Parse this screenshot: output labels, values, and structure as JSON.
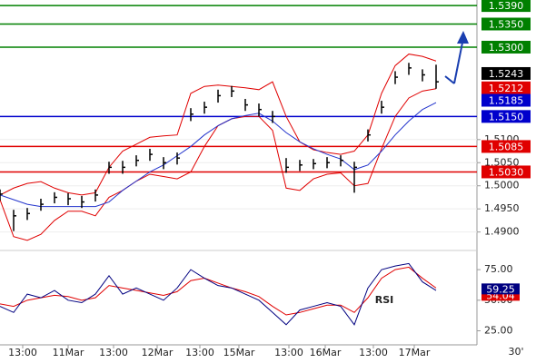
{
  "chart_data": [
    {
      "type": "ohlc",
      "x": [
        0,
        3,
        6,
        9,
        12,
        15,
        18,
        21,
        24,
        27,
        30,
        33,
        36,
        39,
        42,
        45,
        48,
        51,
        54,
        57,
        60,
        63,
        66,
        69,
        72,
        75,
        78,
        81,
        84,
        87,
        90,
        93,
        96
      ],
      "high": [
        1.4992,
        1.4948,
        1.4952,
        1.4972,
        1.4986,
        1.4984,
        1.4978,
        1.4992,
        1.5052,
        1.5054,
        1.5066,
        1.508,
        1.5062,
        1.5072,
        1.5168,
        1.5182,
        1.5208,
        1.5216,
        1.5188,
        1.5178,
        1.5162,
        1.506,
        1.5056,
        1.5058,
        1.5062,
        1.5066,
        1.5052,
        1.5122,
        1.5184,
        1.5248,
        1.5266,
        1.5252,
        1.5262
      ],
      "low": [
        1.4968,
        1.4902,
        1.4926,
        1.4946,
        1.4962,
        1.4958,
        1.4952,
        1.4966,
        1.5026,
        1.5026,
        1.5042,
        1.5054,
        1.5036,
        1.5046,
        1.514,
        1.5156,
        1.518,
        1.5192,
        1.5162,
        1.515,
        1.5136,
        1.5028,
        1.5032,
        1.5036,
        1.5038,
        1.5042,
        1.4985,
        1.5096,
        1.5156,
        1.522,
        1.524,
        1.5226,
        1.521
      ],
      "close": [
        1.4982,
        1.4935,
        1.494,
        1.496,
        1.4975,
        1.4972,
        1.4965,
        1.498,
        1.504,
        1.504,
        1.5055,
        1.5068,
        1.505,
        1.506,
        1.5155,
        1.517,
        1.5195,
        1.5205,
        1.5175,
        1.5165,
        1.515,
        1.504,
        1.5045,
        1.5048,
        1.505,
        1.5055,
        1.504,
        1.511,
        1.517,
        1.5235,
        1.5255,
        1.524,
        1.5225
      ],
      "bar_color": "#000000",
      "bands": {
        "color": "#e00000",
        "upper": [
          1.498,
          1.4995,
          1.5005,
          1.5009,
          1.4995,
          1.4985,
          1.498,
          1.4985,
          1.504,
          1.5075,
          1.509,
          1.5105,
          1.5108,
          1.511,
          1.52,
          1.5215,
          1.5218,
          1.5215,
          1.5212,
          1.5208,
          1.5225,
          1.515,
          1.5095,
          1.5078,
          1.5072,
          1.5068,
          1.5075,
          1.511,
          1.52,
          1.526,
          1.5285,
          1.528,
          1.527
        ],
        "lower": [
          1.497,
          1.489,
          1.4882,
          1.4895,
          1.4925,
          1.4945,
          1.4945,
          1.4935,
          1.4975,
          1.499,
          1.501,
          1.5025,
          1.502,
          1.5015,
          1.503,
          1.5085,
          1.513,
          1.5145,
          1.515,
          1.515,
          1.512,
          1.4995,
          1.499,
          1.5015,
          1.5025,
          1.5028,
          1.5,
          1.5005,
          1.508,
          1.515,
          1.519,
          1.5205,
          1.521
        ]
      },
      "ma": {
        "color": "#2233cc",
        "values": [
          1.498,
          1.497,
          1.496,
          1.4955,
          1.4955,
          1.4955,
          1.4955,
          1.4955,
          1.4965,
          1.499,
          1.501,
          1.503,
          1.5045,
          1.5065,
          1.5085,
          1.511,
          1.513,
          1.5145,
          1.5152,
          1.5157,
          1.514,
          1.5115,
          1.5095,
          1.508,
          1.5068,
          1.5058,
          1.5035,
          1.5045,
          1.5075,
          1.511,
          1.514,
          1.5165,
          1.518
        ]
      },
      "xlim": [
        0,
        105
      ],
      "ylim": [
        1.4862,
        1.5402
      ],
      "yticks": [
        {
          "value": 1.49,
          "label": "1.4900"
        },
        {
          "value": 1.495,
          "label": "1.4950"
        },
        {
          "value": 1.5,
          "label": "1.5000"
        },
        {
          "value": 1.505,
          "label": "1.5050"
        },
        {
          "value": 1.51,
          "label": "1.5100"
        }
      ],
      "levels": [
        {
          "value": 1.539,
          "label": "1.5390",
          "color": "#008000",
          "line": true
        },
        {
          "value": 1.535,
          "label": "1.5350",
          "color": "#008000",
          "line": true
        },
        {
          "value": 1.53,
          "label": "1.5300",
          "color": "#008000",
          "line": true
        },
        {
          "value": 1.5243,
          "label": "1.5243",
          "color": "#000000",
          "line": false
        },
        {
          "value": 1.5212,
          "label": "1.5212",
          "color": "#e00000",
          "line": false
        },
        {
          "value": 1.5185,
          "label": "1.5185",
          "color": "#0000cc",
          "line": false
        },
        {
          "value": 1.515,
          "label": "1.5150",
          "color": "#0000cc",
          "line": true
        },
        {
          "value": 1.5085,
          "label": "1.5085",
          "color": "#e00000",
          "line": true
        },
        {
          "value": 1.503,
          "label": "1.5030",
          "color": "#e00000",
          "line": true
        }
      ]
    },
    {
      "type": "line",
      "title": "RSI",
      "x": [
        0,
        3,
        6,
        9,
        12,
        15,
        18,
        21,
        24,
        27,
        30,
        33,
        36,
        39,
        42,
        45,
        48,
        51,
        54,
        57,
        60,
        63,
        66,
        69,
        72,
        75,
        78,
        81,
        84,
        87,
        90,
        93,
        96
      ],
      "series": [
        {
          "color": "#000080",
          "values": [
            45,
            40,
            55,
            52,
            58,
            50,
            48,
            55,
            70,
            55,
            60,
            55,
            50,
            60,
            75,
            68,
            62,
            60,
            55,
            50,
            40,
            30,
            42,
            45,
            48,
            45,
            30,
            60,
            75,
            78,
            80,
            65,
            58
          ]
        },
        {
          "color": "#e00000",
          "values": [
            47,
            45,
            50,
            52,
            54,
            53,
            50,
            52,
            62,
            60,
            58,
            56,
            54,
            57,
            66,
            68,
            64,
            60,
            57,
            53,
            45,
            38,
            40,
            43,
            46,
            46,
            40,
            52,
            68,
            75,
            77,
            68,
            60
          ]
        }
      ],
      "xlim": [
        0,
        105
      ],
      "ylim": [
        15,
        84
      ],
      "yticks": [
        {
          "value": 25,
          "label": "25.00"
        },
        {
          "value": 50,
          "label": "50.00"
        },
        {
          "value": 75,
          "label": "75.00"
        }
      ],
      "markers": [
        {
          "value": 54.04,
          "color": "#e00000"
        },
        {
          "value": 59.25,
          "color": "#000080"
        }
      ],
      "xticks": [
        {
          "value": 5,
          "label": "13:00"
        },
        {
          "value": 15,
          "label": "11Mar"
        },
        {
          "value": 25,
          "label": "13:00"
        },
        {
          "value": 34.6,
          "label": "12Mar"
        },
        {
          "value": 44,
          "label": "13:00"
        },
        {
          "value": 52.6,
          "label": "15Mar"
        },
        {
          "value": 63.6,
          "label": "13:00"
        },
        {
          "value": 71.6,
          "label": "16Mar"
        },
        {
          "value": 82.2,
          "label": "13:00"
        },
        {
          "value": 91.2,
          "label": "17Mar"
        }
      ],
      "timeframe": "30'"
    }
  ]
}
